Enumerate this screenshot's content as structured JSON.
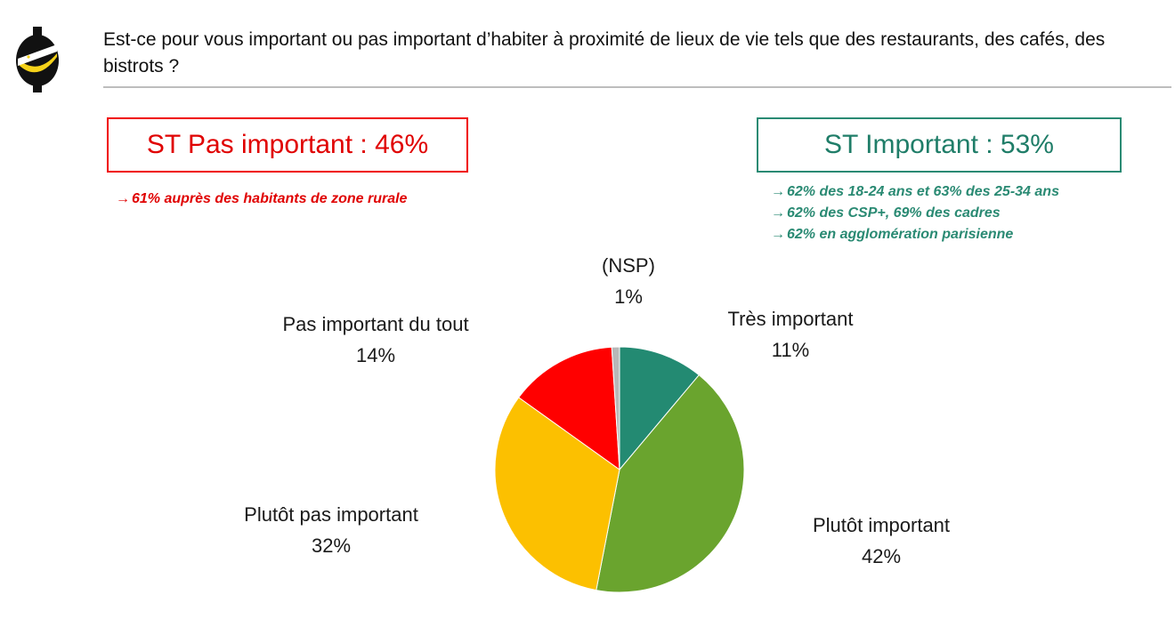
{
  "question": "Est-ce pour vous important ou pas important d’habiter à proximité de lieux de vie tels que des restaurants, des cafés, des bistrots ?",
  "summary": {
    "not_important": {
      "label": "ST Pas important : 46%",
      "color": "#e00000",
      "notes": [
        "61% auprès des habitants de zone rurale"
      ]
    },
    "important": {
      "label": "ST Important : 53%",
      "color": "#2a8a73",
      "notes": [
        "62% des 18-24 ans et 63% des 25-34 ans",
        "62% des CSP+, 69% des cadres",
        "62% en agglomération parisienne"
      ]
    }
  },
  "chart_data": {
    "type": "pie",
    "start": "top",
    "direction": "clockwise",
    "slices": [
      {
        "name": "Très important",
        "value": 11,
        "label": "11%",
        "color": "#238a72"
      },
      {
        "name": "Plutôt important",
        "value": 42,
        "label": "42%",
        "color": "#6aa42e"
      },
      {
        "name": "Plutôt pas important",
        "value": 32,
        "label": "32%",
        "color": "#fcc000"
      },
      {
        "name": "Pas important du tout",
        "value": 14,
        "label": "14%",
        "color": "#ff0000"
      },
      {
        "name": "(NSP)",
        "value": 1,
        "label": "1%",
        "color": "#b8b8b8"
      }
    ]
  }
}
